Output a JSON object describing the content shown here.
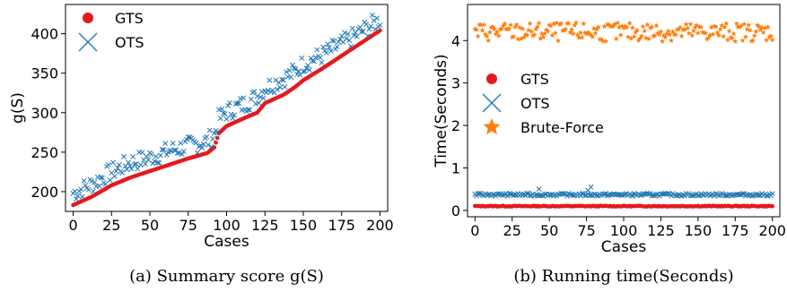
{
  "colors": {
    "gts": "#e41a1c",
    "ots": "#1f77b4",
    "brute": "#ff7f0e"
  },
  "chart_data": [
    {
      "type": "scatter",
      "caption": "(a) Summary score g(S)",
      "xlabel": "Cases",
      "ylabel": "g(S)",
      "xlim": [
        -5,
        205
      ],
      "ylim": [
        175,
        437
      ],
      "xticks": [
        0,
        25,
        50,
        75,
        100,
        125,
        150,
        175,
        200
      ],
      "yticks": [
        200,
        250,
        300,
        350,
        400
      ],
      "legend_placement": "top-left",
      "series": [
        {
          "name": "GTS",
          "marker": "circle",
          "color": "#e41a1c",
          "x": [
            0,
            12.5,
            25,
            37.5,
            50,
            62.5,
            75,
            87.5,
            92,
            95,
            100,
            112.5,
            120,
            125,
            137.5,
            145,
            150,
            162.5,
            175,
            187.5,
            200
          ],
          "y": [
            183,
            194,
            208,
            218,
            226,
            234,
            242,
            249,
            256,
            274,
            283,
            294,
            300,
            312,
            323,
            333,
            341,
            356,
            372,
            388,
            404
          ]
        },
        {
          "name": "OTS",
          "marker": "x",
          "color": "#1f77b4",
          "x": [
            0,
            12.5,
            25,
            37.5,
            50,
            62.5,
            75,
            87.5,
            92,
            95,
            100,
            112.5,
            120,
            125,
            137.5,
            145,
            150,
            162.5,
            175,
            187.5,
            200
          ],
          "y": [
            198,
            210,
            225,
            237,
            243,
            252,
            258,
            264,
            272,
            292,
            301,
            312,
            321,
            331,
            344,
            352,
            362,
            373,
            387,
            402,
            418
          ],
          "spread": 12
        }
      ]
    },
    {
      "type": "scatter",
      "caption": "(b) Running time(Seconds)",
      "xlabel": "Cases",
      "ylabel": "Time(Seconds)",
      "xlim": [
        -5,
        205
      ],
      "ylim": [
        -0.15,
        4.85
      ],
      "xticks": [
        0,
        25,
        50,
        75,
        100,
        125,
        150,
        175,
        200
      ],
      "yticks": [
        0,
        1,
        2,
        3,
        4
      ],
      "legend_placement": "center-left",
      "series": [
        {
          "name": "GTS",
          "marker": "circle",
          "color": "#e41a1c",
          "x": [
            0,
            200
          ],
          "y": [
            0.1,
            0.1
          ],
          "spread": 0.01
        },
        {
          "name": "OTS",
          "marker": "x",
          "color": "#1f77b4",
          "x": [
            0,
            200
          ],
          "y": [
            0.37,
            0.37
          ],
          "spread": 0.03,
          "outliers": [
            [
              43,
              0.5
            ],
            [
              78,
              0.55
            ],
            [
              76,
              0.47
            ]
          ]
        },
        {
          "name": "Brute-Force",
          "marker": "star",
          "color": "#ff7f0e",
          "x": [
            0,
            200
          ],
          "y": [
            4.2,
            4.2
          ],
          "spread": 0.22
        }
      ]
    }
  ]
}
